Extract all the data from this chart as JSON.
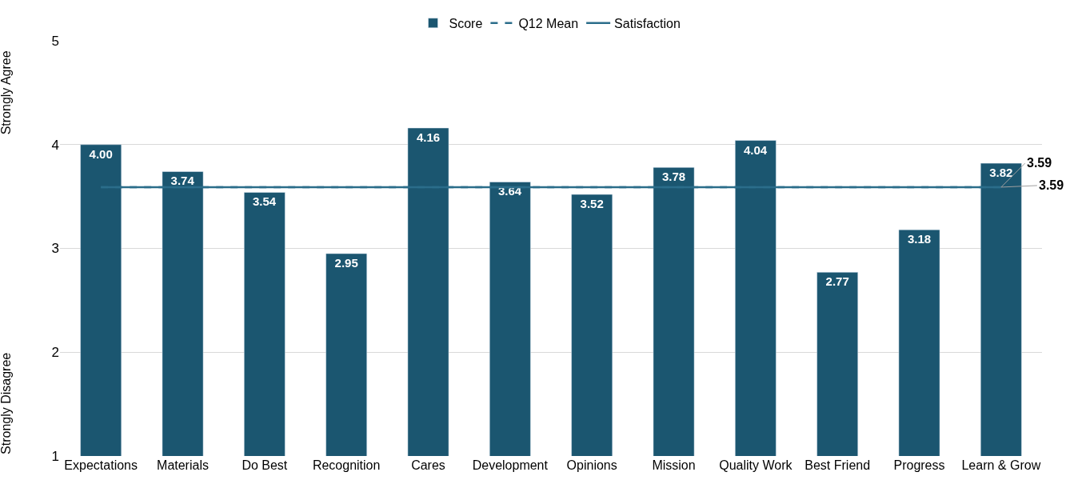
{
  "chart_data": {
    "type": "bar",
    "categories": [
      "Expectations",
      "Materials",
      "Do Best",
      "Recognition",
      "Cares",
      "Development",
      "Opinions",
      "Mission",
      "Quality Work",
      "Best Friend",
      "Progress",
      "Learn & Grow"
    ],
    "series": [
      {
        "name": "Score",
        "color": "#1b5670",
        "values": [
          4.0,
          3.74,
          3.54,
          2.95,
          4.16,
          3.64,
          3.52,
          3.78,
          4.04,
          2.77,
          3.18,
          3.82
        ],
        "value_labels": [
          "4.00",
          "3.74",
          "3.54",
          "2.95",
          "4.16",
          "3.64",
          "3.52",
          "3.78",
          "4.04",
          "2.77",
          "3.18",
          "3.82"
        ]
      },
      {
        "name": "Q12 Mean",
        "type": "line",
        "line_style": "dashed",
        "color": "#2b6d8a",
        "values": [
          3.59,
          3.59,
          3.59,
          3.59,
          3.59,
          3.59,
          3.59,
          3.59,
          3.59,
          3.59,
          3.59,
          3.59
        ],
        "value_labels": [
          null,
          null,
          null,
          null,
          null,
          null,
          null,
          null,
          null,
          null,
          null,
          "3.59"
        ]
      },
      {
        "name": "Satisfaction",
        "type": "line",
        "line_style": "solid",
        "color": "#2b6d8a",
        "values": [
          3.59,
          3.59,
          3.59,
          3.59,
          3.59,
          3.59,
          3.59,
          3.59,
          3.59,
          3.59,
          3.59,
          3.59
        ],
        "value_labels": [
          null,
          null,
          null,
          null,
          null,
          null,
          null,
          null,
          null,
          null,
          null,
          "3.59"
        ]
      }
    ],
    "annotations": [
      "Strongly Agree",
      "Strongly Disagree"
    ],
    "ylim": [
      1,
      5
    ],
    "yticks": [
      1,
      2,
      3,
      4,
      5
    ],
    "grid": "y",
    "legend": "top"
  }
}
